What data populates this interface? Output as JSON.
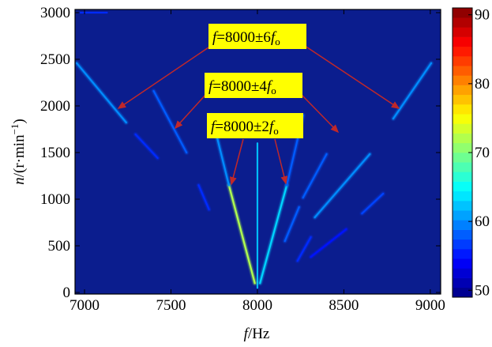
{
  "chart_data": {
    "type": "spectrogram",
    "xlabel": [
      "f",
      "/Hz"
    ],
    "ylabel": [
      "n",
      "/(r·min",
      "−1",
      ")"
    ],
    "xlim": [
      6945,
      9060
    ],
    "ylim": [
      -17,
      3034
    ],
    "xticks": [
      7000,
      7500,
      8000,
      8500,
      9000
    ],
    "yticks": [
      0,
      500,
      1000,
      1500,
      2000,
      2500,
      3000
    ],
    "clim": [
      49,
      91
    ],
    "cticks": [
      50,
      60,
      70,
      80,
      90
    ],
    "colormap": "jet",
    "series": [
      {
        "x": [
          8000,
          8000
        ],
        "values": [
          50,
          1600
        ],
        "level": 62
      },
      {
        "x": [
          7985,
          7835
        ],
        "values": [
          100,
          1150
        ],
        "level": 72
      },
      {
        "x": [
          7835,
          7735
        ],
        "values": [
          1150,
          1900
        ],
        "level": 60
      },
      {
        "x": [
          8015,
          8170
        ],
        "values": [
          100,
          1150
        ],
        "level": 63
      },
      {
        "x": [
          8170,
          8265
        ],
        "values": [
          1150,
          1900
        ],
        "level": 58
      },
      {
        "x": [
          7400,
          7590
        ],
        "values": [
          2160,
          1500
        ],
        "level": 58
      },
      {
        "x": [
          7660,
          7720
        ],
        "values": [
          1150,
          890
        ],
        "level": 56
      },
      {
        "x": [
          8400,
          8264
        ],
        "values": [
          1483,
          1017
        ],
        "level": 58
      },
      {
        "x": [
          8241,
          8159
        ],
        "values": [
          915,
          551
        ],
        "level": 58
      },
      {
        "x": [
          6955,
          7241
        ],
        "values": [
          2458,
          1822
        ],
        "level": 60
      },
      {
        "x": [
          7295,
          7423
        ],
        "values": [
          1695,
          1441
        ],
        "level": 56
      },
      {
        "x": [
          9005,
          8786
        ],
        "values": [
          2458,
          1864
        ],
        "level": 60
      },
      {
        "x": [
          8650,
          8332
        ],
        "values": [
          1483,
          805
        ],
        "level": 60
      },
      {
        "x": [
          8309,
          8232
        ],
        "values": [
          593,
          339
        ],
        "level": 56
      },
      {
        "x": [
          8727,
          8605
        ],
        "values": [
          1059,
          847
        ],
        "level": 57
      },
      {
        "x": [
          8514,
          8309
        ],
        "values": [
          678,
          381
        ],
        "level": 55
      },
      {
        "x": [
          6970,
          7130
        ],
        "values": [
          3000,
          3000
        ],
        "level": 56
      }
    ],
    "annotations": [
      {
        "parts": [
          "f",
          "=8000±6",
          "f",
          "o"
        ]
      },
      {
        "parts": [
          "f",
          "=8000±4",
          "f",
          "o"
        ]
      },
      {
        "parts": [
          "f",
          "=8000±2",
          "f",
          "o"
        ]
      }
    ]
  }
}
